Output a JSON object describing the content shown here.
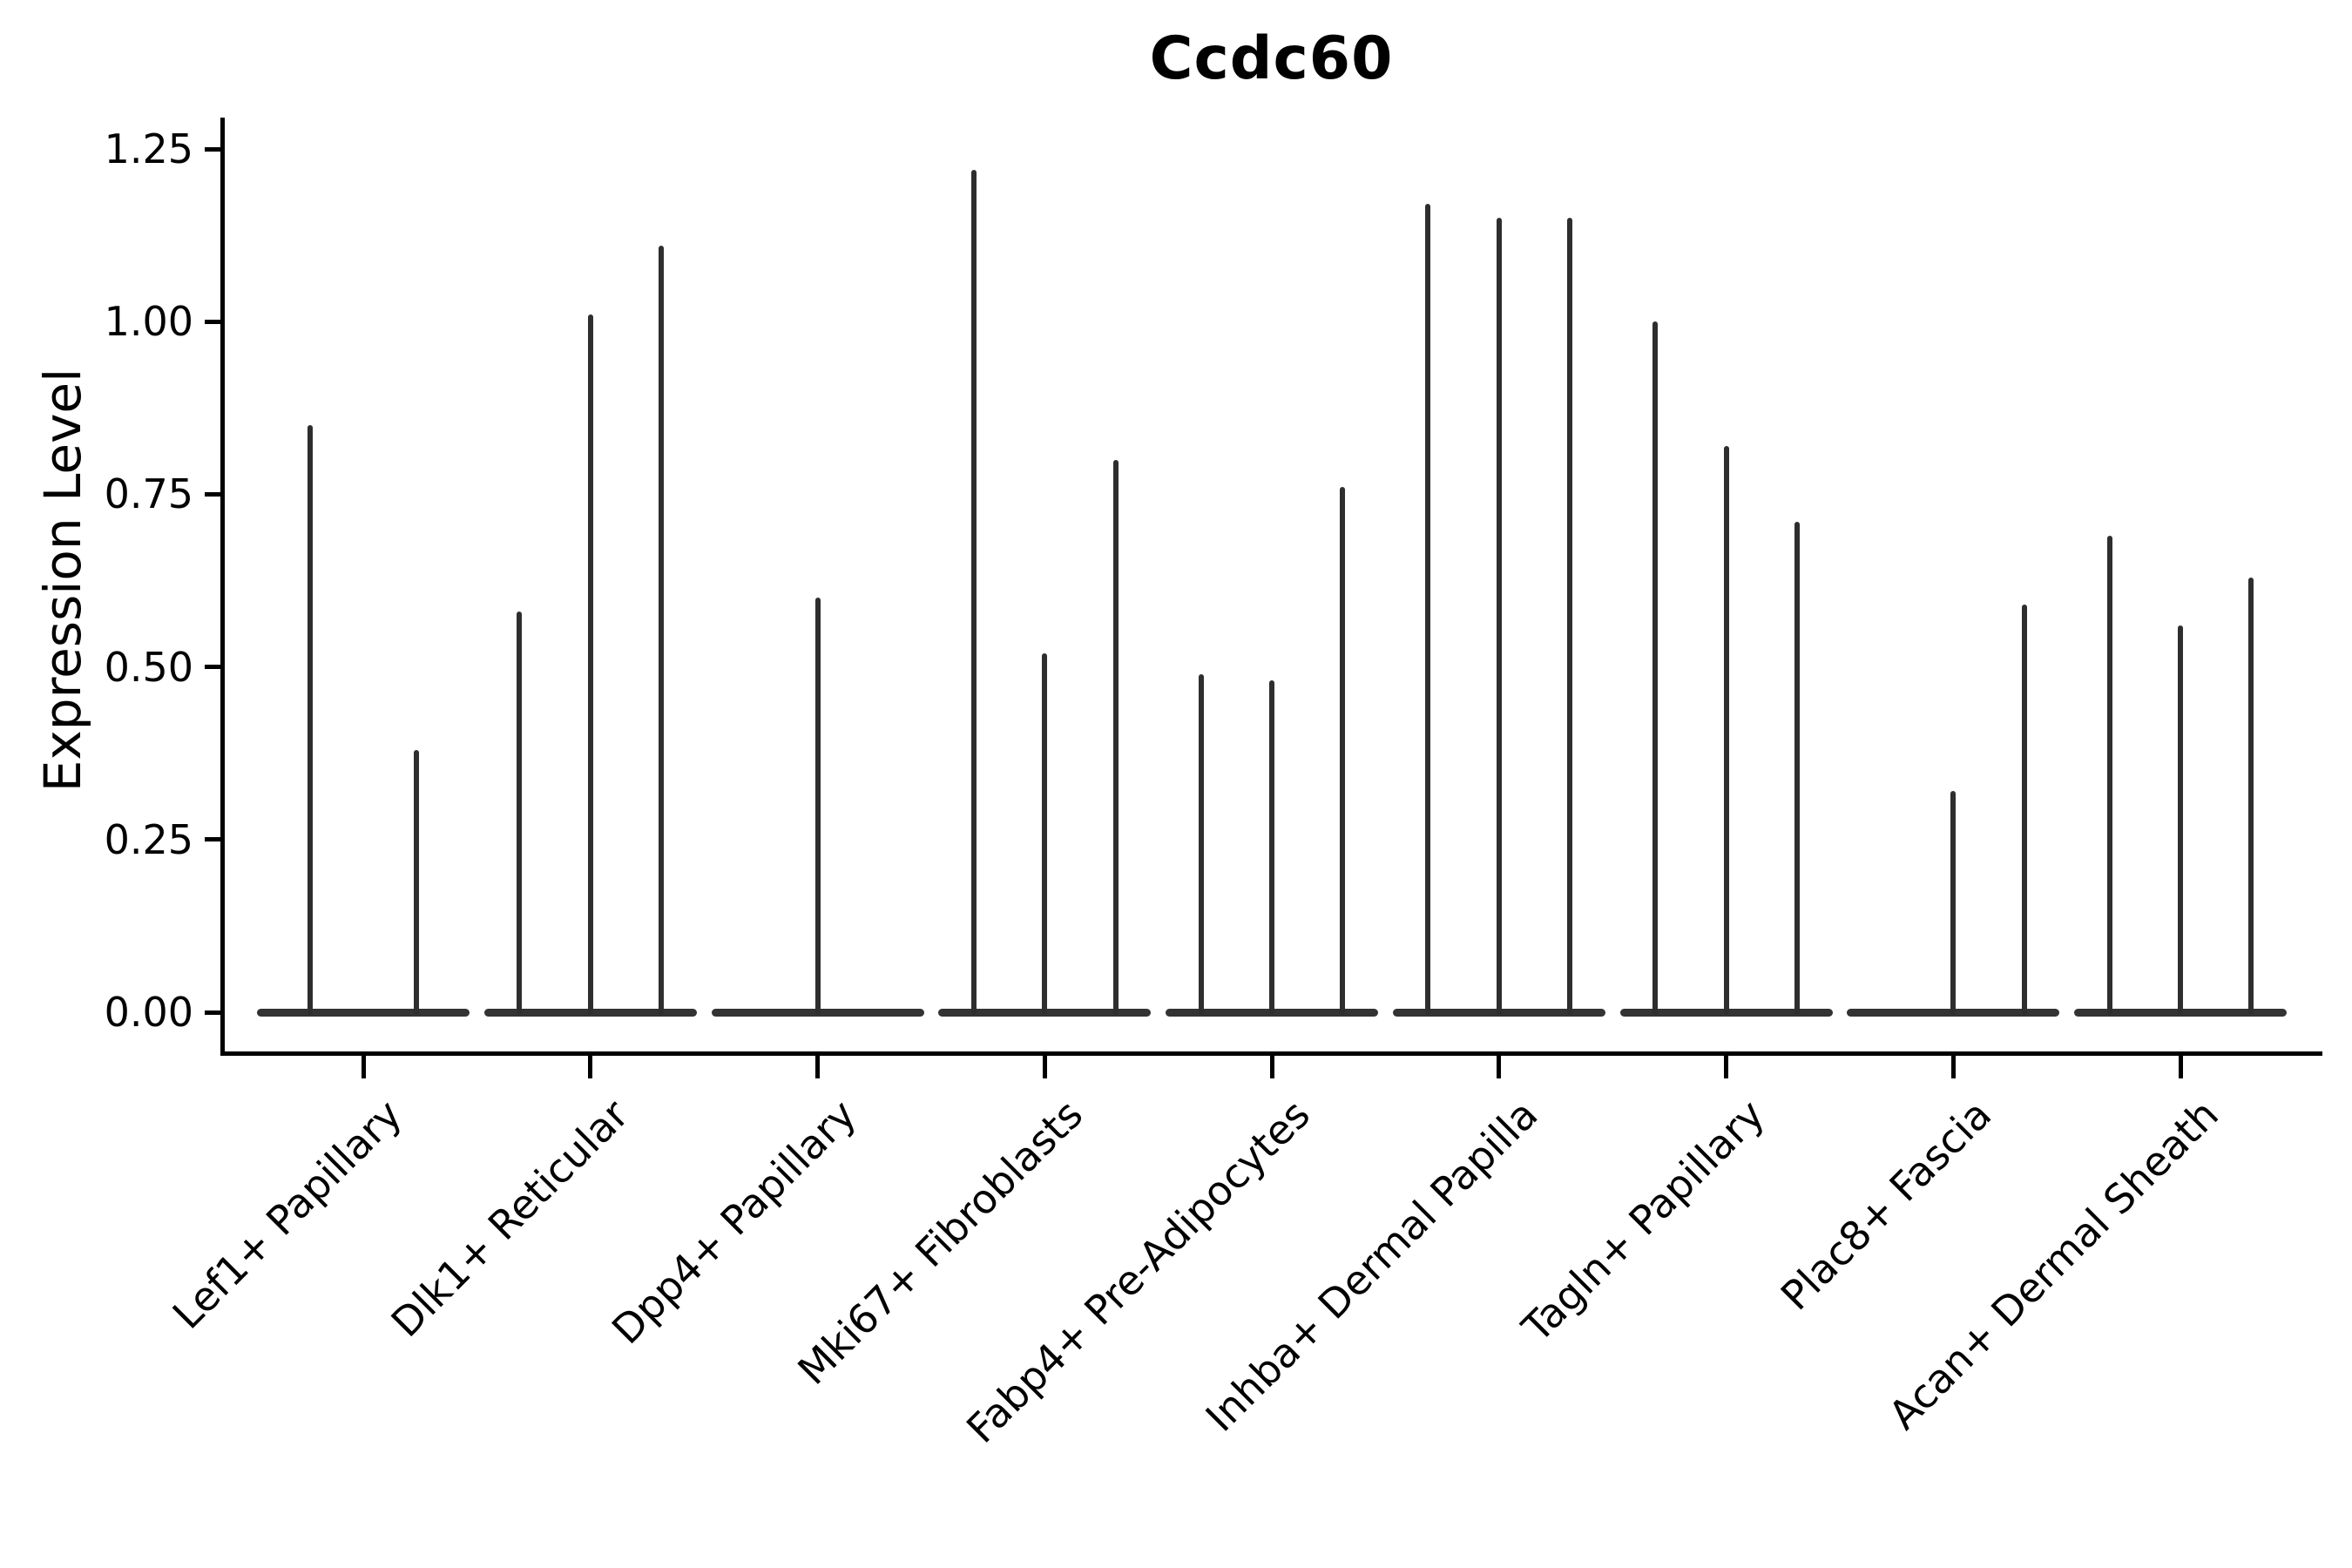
{
  "chart_data": {
    "type": "violin",
    "style": "thin-spike violins (single-cell expression, most values at zero)",
    "title": "Ccdc60",
    "xlabel": "",
    "ylabel": "Expression Level",
    "ylim": [
      0,
      1.25
    ],
    "yticks": [
      0.0,
      0.25,
      0.5,
      0.75,
      1.0,
      1.25
    ],
    "grid": false,
    "legend": false,
    "categories": [
      "Lef1+ Papillary",
      "Dlk1+ Reticular",
      "Dpp4+ Papillary",
      "Mki67+ Fibroblasts",
      "Fabp4+ Pre-Adipocytes",
      "Inhba+ Dermal Papilla",
      "Tagln+ Papillary",
      "Plac8+ Fascia",
      "Acan+ Dermal Sheath"
    ],
    "groups": [
      {
        "label": "Lef1+ Papillary",
        "n_violins": 2,
        "violin_max_values": [
          0.85,
          0.38
        ]
      },
      {
        "label": "Dlk1+ Reticular",
        "n_violins": 3,
        "violin_max_values": [
          0.58,
          1.01,
          1.11
        ]
      },
      {
        "label": "Dpp4+ Papillary",
        "n_violins": 1,
        "violin_max_values": [
          0.6
        ]
      },
      {
        "label": "Mki67+ Fibroblasts",
        "n_violins": 3,
        "violin_max_values": [
          1.22,
          0.52,
          0.8
        ]
      },
      {
        "label": "Fabp4+ Pre-Adipocytes",
        "n_violins": 3,
        "violin_max_values": [
          0.49,
          0.48,
          0.76
        ]
      },
      {
        "label": "Inhba+ Dermal Papilla",
        "n_violins": 3,
        "violin_max_values": [
          1.17,
          1.15,
          1.15
        ]
      },
      {
        "label": "Tagln+ Papillary",
        "n_violins": 3,
        "violin_max_values": [
          1.0,
          0.82,
          0.71
        ]
      },
      {
        "label": "Plac8+ Fascia",
        "n_violins": 3,
        "violin_max_values": [
          0.0,
          0.32,
          0.59
        ]
      },
      {
        "label": "Acan+ Dermal Sheath",
        "n_violins": 3,
        "violin_max_values": [
          0.69,
          0.56,
          0.63
        ]
      }
    ],
    "colors": {
      "spike": "#2e2e2e",
      "baseline": "#333333",
      "axis": "#000000",
      "text": "#000000",
      "background": "#ffffff"
    }
  }
}
